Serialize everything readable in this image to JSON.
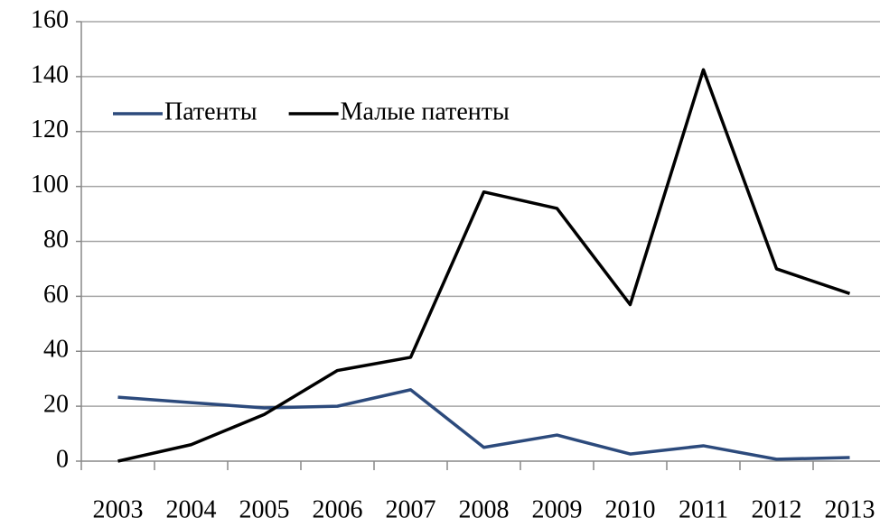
{
  "chart_data": {
    "type": "line",
    "categories": [
      "2003",
      "2004",
      "2005",
      "2006",
      "2007",
      "2008",
      "2009",
      "2010",
      "2011",
      "2012",
      "2013"
    ],
    "series": [
      {
        "name": "Патенты",
        "color": "#2c4a7c",
        "values": [
          23.3,
          21.3,
          19.4,
          20,
          26,
          5,
          9.5,
          2.6,
          5.6,
          0.7,
          1.3
        ]
      },
      {
        "name": "Малые патенты",
        "color": "#000000",
        "values": [
          0,
          6,
          17,
          33,
          37.8,
          98,
          92,
          57,
          142.5,
          70,
          61
        ]
      }
    ],
    "ylim": [
      0,
      160
    ],
    "yticks": [
      0,
      20,
      40,
      60,
      80,
      100,
      120,
      140,
      160
    ],
    "grid": true,
    "legend": "top-left"
  }
}
